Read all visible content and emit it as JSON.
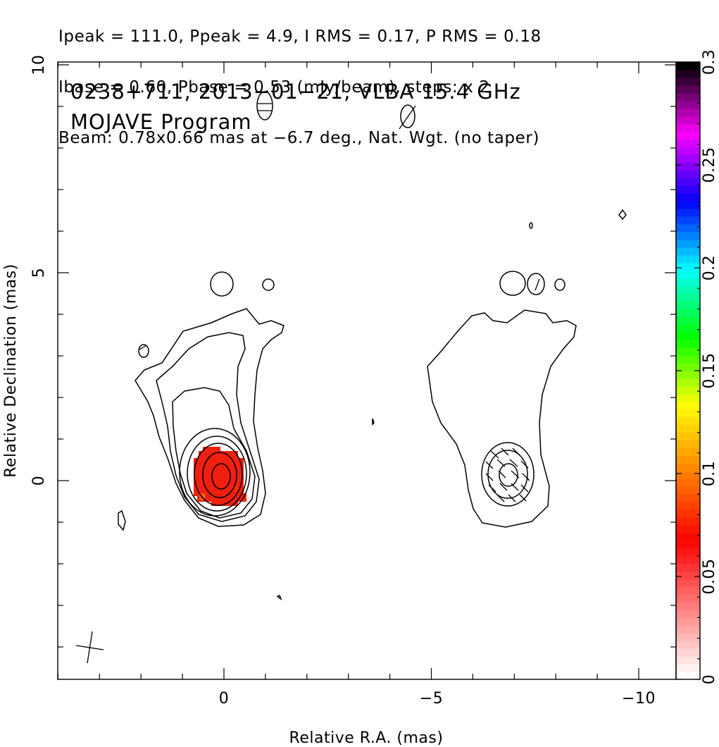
{
  "header": {
    "line1": "Ipeak = 111.0, Ppeak = 4.9, I RMS = 0.17, P RMS = 0.18",
    "line2": "Ibase = 0.60, Pbase = 0.53 (mJy/beam), steps: x 2",
    "line3": "Beam: 0.78x0.66 mas at −6.7 deg., Nat. Wgt. (no taper)"
  },
  "annotation": {
    "line1": "0238+711, 2013−01−21, VLBA 15.4 GHz",
    "line2": "MOJAVE Program"
  },
  "chart_data": [
    {
      "type": "heatmap",
      "subtype": "radio-contour-map",
      "xlabel": "Relative R.A. (mas)",
      "ylabel": "Relative Declination (mas)",
      "xlim": [
        4.0,
        -10.9
      ],
      "ylim": [
        -4.8,
        10.0
      ],
      "x_ticks": [
        {
          "value": 0,
          "label": "0"
        },
        {
          "value": -5,
          "label": "−5"
        },
        {
          "value": -10,
          "label": "−10"
        }
      ],
      "y_ticks": [
        {
          "value": 0,
          "label": "0"
        },
        {
          "value": 5,
          "label": "5"
        },
        {
          "value": 10,
          "label": "10"
        }
      ],
      "core_position": {
        "x": 0.0,
        "y": 0.1
      },
      "polarization_panel_offset_mas": -6.9,
      "contour_levels_mJy_per_beam": [
        0.6,
        1.2,
        2.4,
        4.8,
        9.6,
        19.2,
        38.4,
        76.8
      ],
      "fractional_polarization_peak_color": "#f02010",
      "beam": {
        "major_mas": 0.78,
        "minor_mas": 0.66,
        "pa_deg": -6.7
      }
    },
    {
      "type": "heatmap",
      "subtype": "colorbar",
      "ticks": [
        {
          "value": 0,
          "label": "0"
        },
        {
          "value": 0.05,
          "label": "0.05"
        },
        {
          "value": 0.1,
          "label": "0.1"
        },
        {
          "value": 0.15,
          "label": "0.15"
        },
        {
          "value": 0.2,
          "label": "0.2"
        },
        {
          "value": 0.25,
          "label": "0.25"
        },
        {
          "value": 0.3,
          "label": "0.3"
        }
      ],
      "range": [
        0,
        0.3
      ],
      "colors": [
        "#ffffff",
        "#ff8080",
        "#ff0000",
        "#ff8000",
        "#ffff00",
        "#00ff00",
        "#00ffff",
        "#0000ff",
        "#ff00ff",
        "#000000"
      ]
    }
  ]
}
